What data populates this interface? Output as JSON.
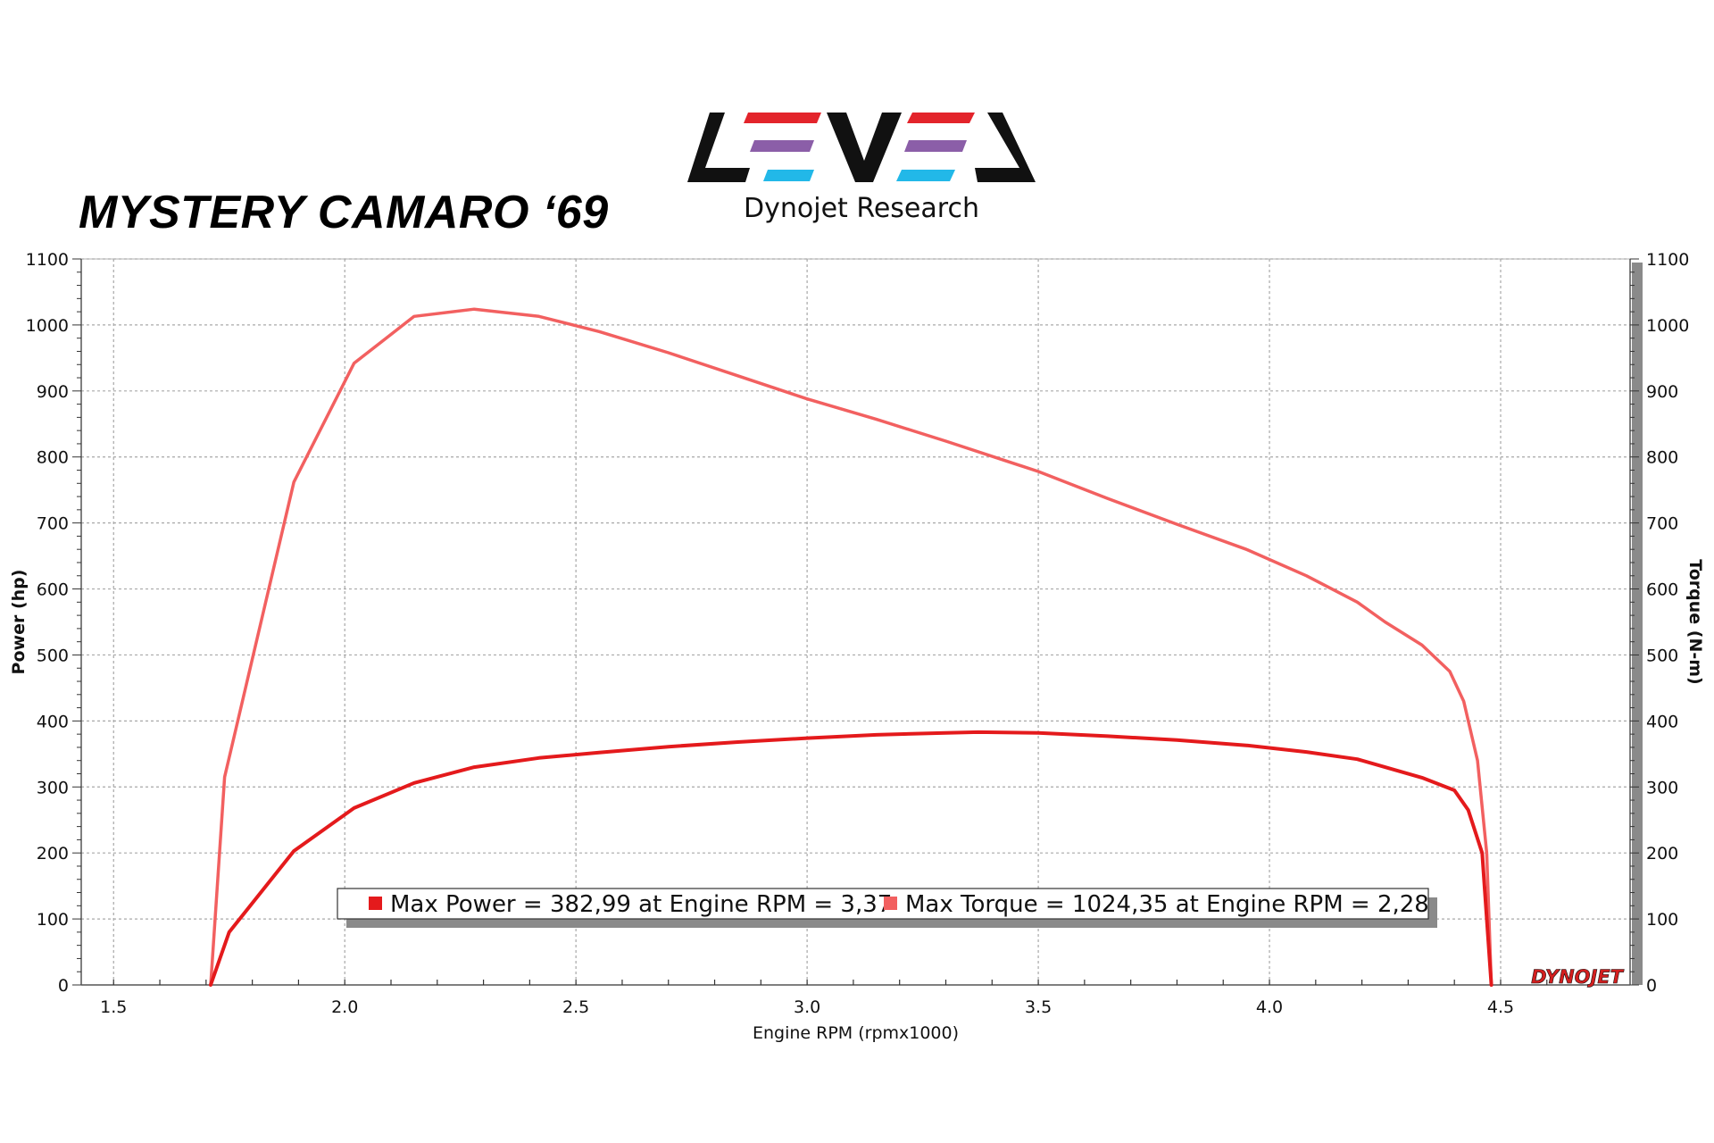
{
  "header": {
    "title": "MYSTERY CAMARO ‘69",
    "logo_subtitle": "Dynojet Research",
    "logo_text": "LEVEL",
    "logo_stripe_colors": [
      "#e3242b",
      "#8b5ea8",
      "#22b8e8"
    ],
    "watermark": "DYNOJET"
  },
  "chart_data": {
    "type": "line",
    "xlabel": "Engine RPM (rpmx1000)",
    "ylabel_left": "Power (hp)",
    "ylabel_right": "Torque (N-m)",
    "xlim": [
      1.43,
      4.78
    ],
    "ylim": [
      0,
      1100
    ],
    "x_ticks": [
      1.5,
      2.0,
      2.5,
      3.0,
      3.5,
      4.0,
      4.5
    ],
    "x_tick_labels": [
      "1.5",
      "2.0",
      "2.5",
      "3.0",
      "3.5",
      "4.0",
      "4.5"
    ],
    "y_ticks": [
      0,
      100,
      200,
      300,
      400,
      500,
      600,
      700,
      800,
      900,
      1000,
      1100
    ],
    "y_tick_labels": [
      "0",
      "100",
      "200",
      "300",
      "400",
      "500",
      "600",
      "700",
      "800",
      "900",
      "1000",
      "1100"
    ],
    "grid": true,
    "series": [
      {
        "axis": "left",
        "color": "#e41a1c",
        "x": [
          1.71,
          1.75,
          1.89,
          2.02,
          2.15,
          2.28,
          2.42,
          2.55,
          2.7,
          2.85,
          3.0,
          3.15,
          3.3,
          3.37,
          3.5,
          3.65,
          3.8,
          3.95,
          4.08,
          4.19,
          4.25,
          4.33,
          4.4,
          4.43,
          4.46,
          4.48
        ],
        "y": [
          0,
          80,
          203,
          268,
          306,
          330,
          344,
          352,
          361,
          368,
          374,
          379,
          382,
          383,
          382,
          377,
          371,
          363,
          353,
          342,
          330,
          314,
          295,
          265,
          200,
          0
        ]
      },
      {
        "axis": "right",
        "color": "#f26060",
        "x": [
          1.71,
          1.74,
          1.89,
          2.02,
          2.15,
          2.28,
          2.42,
          2.55,
          2.7,
          2.85,
          3.0,
          3.15,
          3.3,
          3.5,
          3.65,
          3.8,
          3.95,
          4.08,
          4.19,
          4.25,
          4.33,
          4.39,
          4.42,
          4.45,
          4.47,
          4.48
        ],
        "y": [
          0,
          315,
          762,
          942,
          1013,
          1024,
          1013,
          990,
          958,
          923,
          888,
          857,
          824,
          778,
          737,
          698,
          660,
          620,
          580,
          550,
          515,
          475,
          430,
          340,
          200,
          0
        ]
      }
    ],
    "legend": {
      "placement": "bottom-center",
      "items": [
        {
          "label": "Max Power = 382,99 at Engine RPM = 3,37",
          "color": "#e41a1c"
        },
        {
          "label": "Max Torque = 1024,35 at Engine RPM = 2,28",
          "color": "#f26060"
        }
      ]
    }
  }
}
